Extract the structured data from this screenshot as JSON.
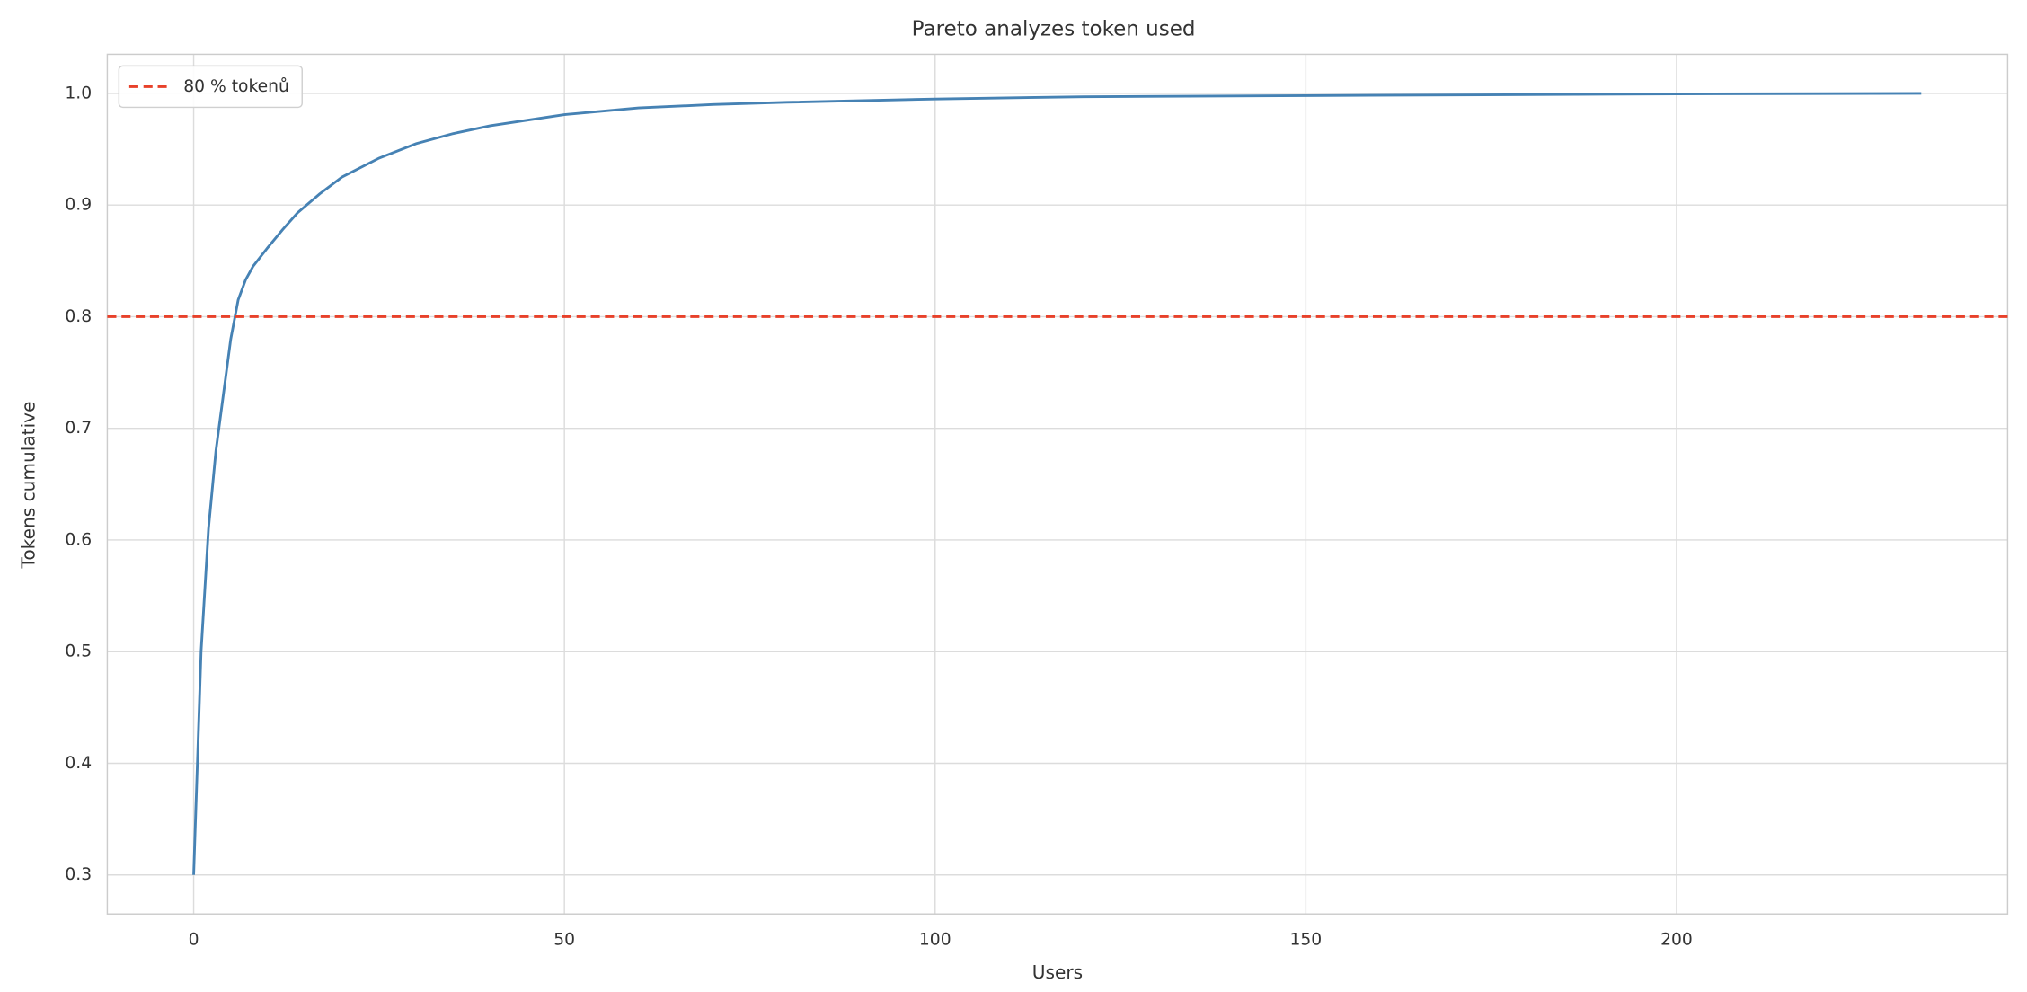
{
  "chart_data": {
    "type": "line",
    "title": "Pareto analyzes token used",
    "xlabel": "Users",
    "ylabel": "Tokens cumulative",
    "x": [
      0,
      1,
      2,
      3,
      4,
      5,
      6,
      7,
      8,
      10,
      12,
      14,
      17,
      20,
      25,
      30,
      35,
      40,
      50,
      60,
      70,
      80,
      100,
      120,
      150,
      200,
      233
    ],
    "series": [
      {
        "color": "#4682b4",
        "values": [
          0.3,
          0.5,
          0.61,
          0.68,
          0.73,
          0.78,
          0.815,
          0.833,
          0.845,
          0.862,
          0.878,
          0.893,
          0.91,
          0.925,
          0.942,
          0.955,
          0.964,
          0.971,
          0.981,
          0.987,
          0.99,
          0.992,
          0.995,
          0.997,
          0.998,
          0.9995,
          1.0
        ]
      }
    ],
    "hlines": [
      {
        "name": "80 % tokenů",
        "y": 0.8,
        "color": "#e8412a",
        "dashed": true
      }
    ],
    "xlim": [
      -11.65,
      244.65
    ],
    "ylim": [
      0.265,
      1.035
    ],
    "xticks": [
      0,
      50,
      100,
      150,
      200
    ],
    "yticks": [
      {
        "value": 0.3,
        "label": "0.3"
      },
      {
        "value": 0.4,
        "label": "0.4"
      },
      {
        "value": 0.5,
        "label": "0.5"
      },
      {
        "value": 0.6,
        "label": "0.6"
      },
      {
        "value": 0.7,
        "label": "0.7"
      },
      {
        "value": 0.8,
        "label": "0.8"
      },
      {
        "value": 0.9,
        "label": "0.9"
      },
      {
        "value": 1.0,
        "label": "1.0"
      }
    ],
    "grid": true,
    "legend": "upper left"
  }
}
